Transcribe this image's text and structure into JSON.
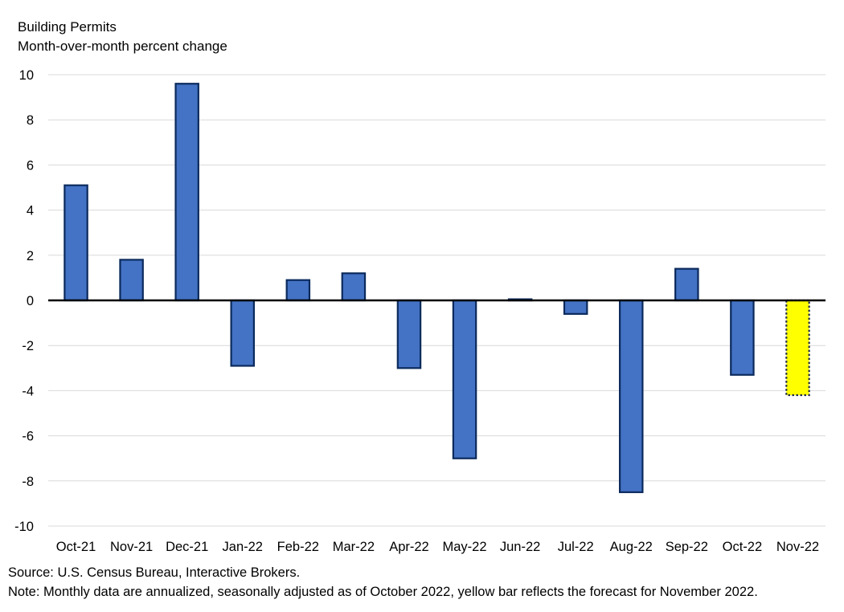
{
  "chart_data": {
    "type": "bar",
    "title": "Building Permits",
    "subtitle": "Month-over-month percent change",
    "categories": [
      "Oct-21",
      "Nov-21",
      "Dec-21",
      "Jan-22",
      "Feb-22",
      "Mar-22",
      "Apr-22",
      "May-22",
      "Jun-22",
      "Jul-22",
      "Aug-22",
      "Sep-22",
      "Oct-22",
      "Nov-22"
    ],
    "values": [
      5.1,
      1.8,
      9.6,
      -2.9,
      0.9,
      1.2,
      -3.0,
      -7.0,
      0.05,
      -0.6,
      -8.5,
      1.4,
      -3.3,
      -4.2
    ],
    "forecast_index": 13,
    "ylim": [
      -10,
      10
    ],
    "yticks": [
      10,
      8,
      6,
      4,
      2,
      0,
      -2,
      -4,
      -6,
      -8,
      -10
    ],
    "xlabel": "",
    "ylabel": "",
    "grid": true,
    "colors": {
      "bar": "#4472C4",
      "bar_edge": "#0B2A5C",
      "forecast": "#FFFF00",
      "grid": "#D9D9D9",
      "zero_line": "#000000"
    }
  },
  "footnotes": {
    "source": "Source: U.S. Census Bureau, Interactive Brokers.",
    "note": "Note: Monthly data are annualized, seasonally adjusted as of October 2022, yellow bar reflects the forecast for November 2022."
  }
}
